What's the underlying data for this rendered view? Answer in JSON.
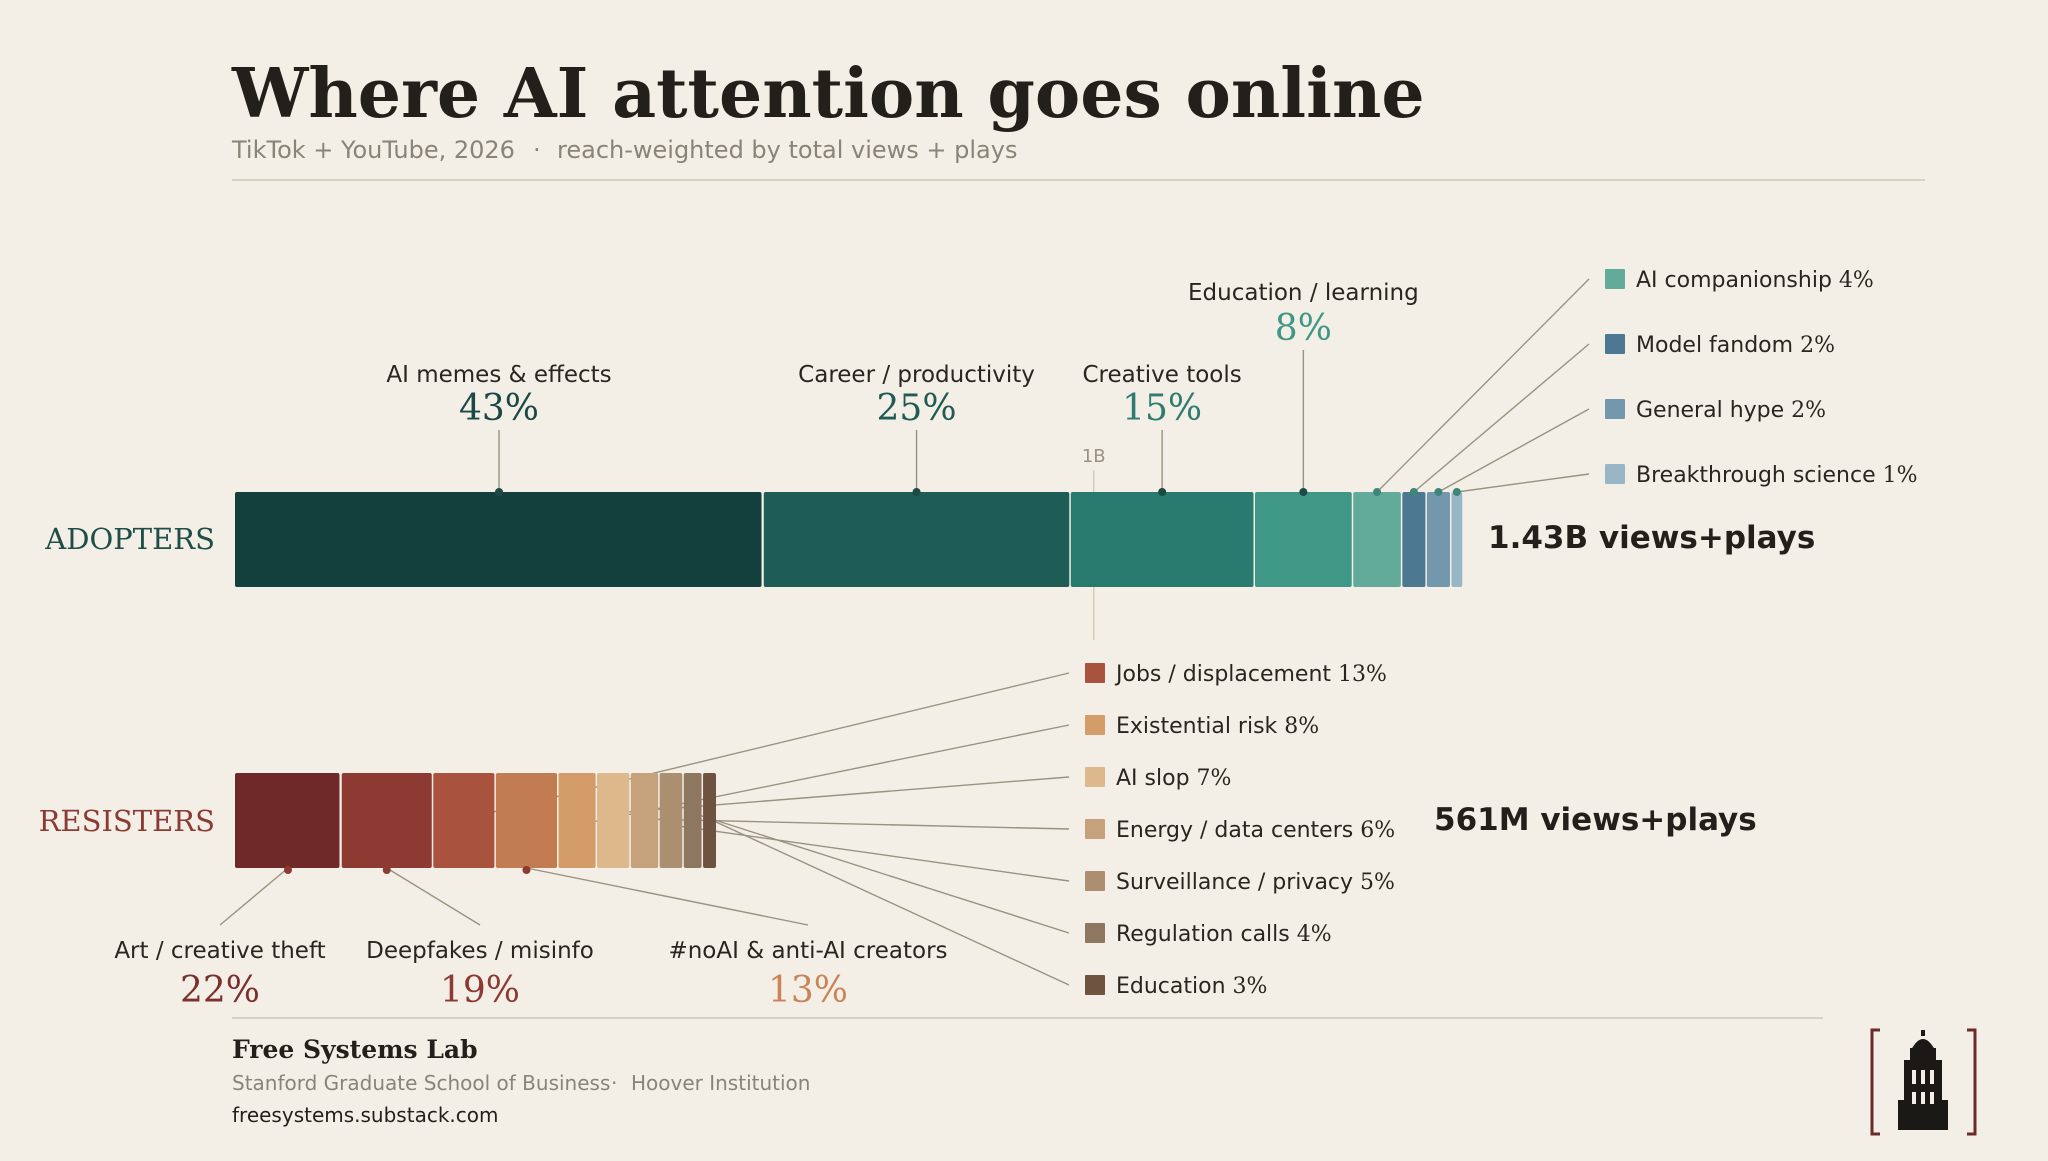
{
  "header": {
    "title": "Where AI attention goes online",
    "subtitle_source": "TikTok + YouTube, 2026",
    "subtitle_separator": "·",
    "subtitle_method": "reach-weighted by total views + plays"
  },
  "chart_data": {
    "type": "bar",
    "scale_tick_label": "1B",
    "scale_tick_value": 1000000000,
    "series": [
      {
        "name": "ADOPTERS",
        "total": 1430000000,
        "total_label": "1.43B views+plays",
        "label_color": "#1f4e48",
        "segments": [
          {
            "label": "AI memes & effects",
            "value": 43,
            "value_label": "43%",
            "color": "#133f3d",
            "label_color": "#1a4844",
            "callout": "above"
          },
          {
            "label": "Career / productivity",
            "value": 25,
            "value_label": "25%",
            "color": "#1d5d56",
            "label_color": "#1f5a53",
            "callout": "above"
          },
          {
            "label": "Creative tools",
            "value": 15,
            "value_label": "15%",
            "color": "#287a6e",
            "label_color": "#2e7c70",
            "callout": "above"
          },
          {
            "label": "Education / learning",
            "value": 8,
            "value_label": "8%",
            "color": "#3f9785",
            "label_color": "#3f9785",
            "callout": "above-high"
          },
          {
            "label": "AI companionship",
            "value": 4,
            "value_label": "4%",
            "color": "#62ab9a",
            "callout": "legend"
          },
          {
            "label": "Model fandom",
            "value": 2,
            "value_label": "2%",
            "color": "#4c7891",
            "callout": "legend"
          },
          {
            "label": "General hype",
            "value": 2,
            "value_label": "2%",
            "color": "#7398ad",
            "callout": "legend"
          },
          {
            "label": "Breakthrough science",
            "value": 1,
            "value_label": "1%",
            "color": "#98b6c6",
            "callout": "legend"
          }
        ]
      },
      {
        "name": "RESISTERS",
        "total": 561000000,
        "total_label": "561M views+plays",
        "label_color": "#8c3a34",
        "segments": [
          {
            "label": "Art / creative theft",
            "value": 22,
            "value_label": "22%",
            "color": "#6f2929",
            "label_color": "#7a302c",
            "callout": "below"
          },
          {
            "label": "Deepfakes / misinfo",
            "value": 19,
            "value_label": "19%",
            "color": "#8d3a33",
            "label_color": "#8d3a33",
            "callout": "below"
          },
          {
            "label": "Jobs / displacement",
            "value": 13,
            "value_label": "13%",
            "color": "#a9533e",
            "callout": "legend"
          },
          {
            "label": "#noAI & anti-AI creators",
            "value": 13,
            "value_label": "13%",
            "color": "#c27c51",
            "label_color": "#c98458",
            "callout": "below"
          },
          {
            "label": "Existential risk",
            "value": 8,
            "value_label": "8%",
            "color": "#d39c69",
            "callout": "legend"
          },
          {
            "label": "AI slop",
            "value": 7,
            "value_label": "7%",
            "color": "#ddb88d",
            "callout": "legend"
          },
          {
            "label": "Energy / data centers",
            "value": 6,
            "value_label": "6%",
            "color": "#c5a27c",
            "callout": "legend"
          },
          {
            "label": "Surveillance / privacy",
            "value": 5,
            "value_label": "5%",
            "color": "#ab8f70",
            "callout": "legend"
          },
          {
            "label": "Regulation calls",
            "value": 4,
            "value_label": "4%",
            "color": "#8e7760",
            "callout": "legend"
          },
          {
            "label": "Education",
            "value": 3,
            "value_label": "3%",
            "color": "#6e5341",
            "callout": "legend"
          }
        ]
      }
    ]
  },
  "footer": {
    "org": "Free Systems Lab",
    "affiliation_1": "Stanford Graduate School of Business",
    "separator": "·",
    "affiliation_2": "Hoover Institution",
    "url": "freesystems.substack.com",
    "logo_name": "hoover-tower-logo"
  }
}
